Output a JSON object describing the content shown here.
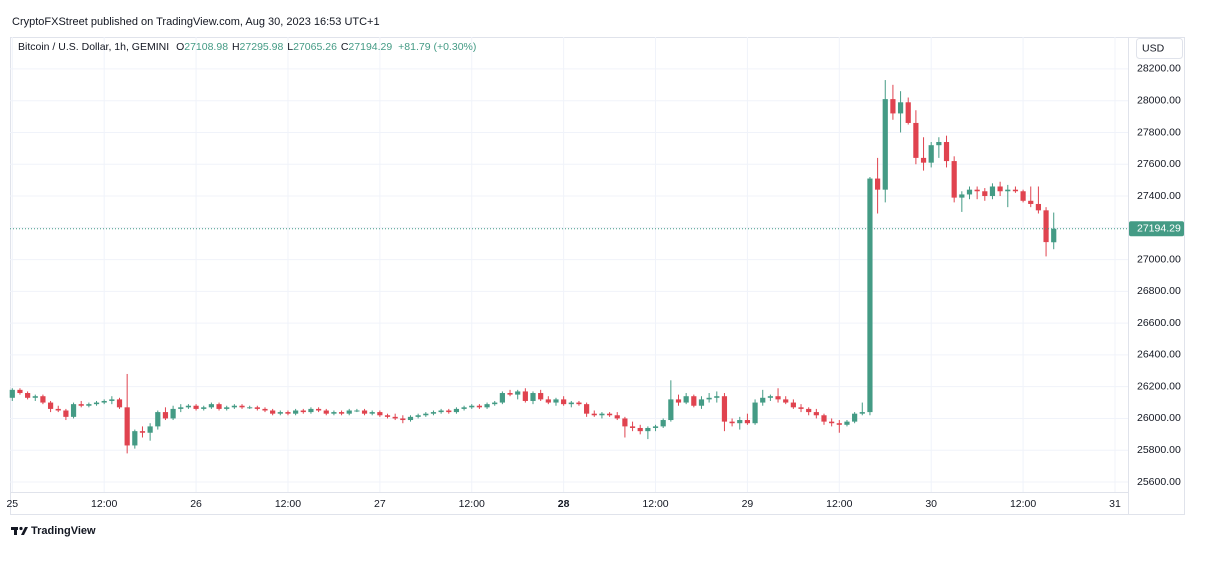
{
  "header": "CryptoFXStreet published on TradingView.com, Aug 30, 2023 16:53 UTC+1",
  "brand": "TradingView",
  "chart_data": {
    "type": "candlestick",
    "title": "Bitcoin / U.S. Dollar, 1h, GEMINI",
    "ohlc_labels": [
      "O",
      "H",
      "L",
      "C"
    ],
    "change": "+81.79 (+0.30%)",
    "currency": "USD",
    "up_color": "#449b85",
    "down_color": "#e0434f",
    "grid": true,
    "ylim": [
      25537,
      28401
    ],
    "yticks": [
      {
        "value": 25600,
        "label": "25600.00"
      },
      {
        "value": 25800,
        "label": "25800.00"
      },
      {
        "value": 26000,
        "label": "26000.00"
      },
      {
        "value": 26200,
        "label": "26200.00"
      },
      {
        "value": 26400,
        "label": "26400.00"
      },
      {
        "value": 26600,
        "label": "26600.00"
      },
      {
        "value": 26800,
        "label": "26800.00"
      },
      {
        "value": 27000,
        "label": "27000.00"
      },
      {
        "value": 27200,
        "label": "27200.00"
      },
      {
        "value": 27400,
        "label": "27400.00"
      },
      {
        "value": 27600,
        "label": "27600.00"
      },
      {
        "value": 27800,
        "label": "27800.00"
      },
      {
        "value": 28000,
        "label": "28000.00"
      },
      {
        "value": 28200,
        "label": "28200.00"
      }
    ],
    "xlim": [
      -0.3,
      145.7
    ],
    "xticks": [
      {
        "value": 0,
        "label": "25"
      },
      {
        "value": 12,
        "label": "12:00"
      },
      {
        "value": 24,
        "label": "26"
      },
      {
        "value": 36,
        "label": "12:00"
      },
      {
        "value": 48,
        "label": "27"
      },
      {
        "value": 60,
        "label": "12:00"
      },
      {
        "value": 72,
        "label": "28"
      },
      {
        "value": 84,
        "label": "12:00"
      },
      {
        "value": 96,
        "label": "29"
      },
      {
        "value": 108,
        "label": "12:00"
      },
      {
        "value": 120,
        "label": "30"
      },
      {
        "value": 132,
        "label": "12:00"
      },
      {
        "value": 144,
        "label": "31"
      }
    ],
    "candles": [
      [
        26130,
        26190,
        26110,
        26180
      ],
      [
        26180,
        26190,
        26150,
        26160
      ],
      [
        26160,
        26170,
        26120,
        26130
      ],
      [
        26130,
        26150,
        26110,
        26140
      ],
      [
        26140,
        26150,
        26090,
        26100
      ],
      [
        26100,
        26110,
        26040,
        26060
      ],
      [
        26060,
        26080,
        26040,
        26050
      ],
      [
        26050,
        26060,
        25990,
        26010
      ],
      [
        26010,
        26100,
        26000,
        26090
      ],
      [
        26090,
        26110,
        26070,
        26080
      ],
      [
        26080,
        26100,
        26070,
        26090
      ],
      [
        26090,
        26110,
        26080,
        26100
      ],
      [
        26100,
        26120,
        26090,
        26110
      ],
      [
        26110,
        26140,
        26090,
        26120
      ],
      [
        26120,
        26130,
        26060,
        26070
      ],
      [
        26070,
        26280,
        25780,
        25830
      ],
      [
        25830,
        25930,
        25810,
        25920
      ],
      [
        25920,
        25950,
        25880,
        25910
      ],
      [
        25910,
        25970,
        25860,
        25950
      ],
      [
        25950,
        26050,
        25930,
        26040
      ],
      [
        26040,
        26070,
        25990,
        26000
      ],
      [
        26000,
        26080,
        25990,
        26060
      ],
      [
        26060,
        26090,
        26040,
        26070
      ],
      [
        26070,
        26090,
        26060,
        26080
      ],
      [
        26080,
        26090,
        26050,
        26060
      ],
      [
        26060,
        26080,
        26050,
        26070
      ],
      [
        26070,
        26100,
        26060,
        26090
      ],
      [
        26090,
        26100,
        26050,
        26060
      ],
      [
        26060,
        26080,
        26050,
        26070
      ],
      [
        26070,
        26090,
        26060,
        26080
      ],
      [
        26080,
        26090,
        26060,
        26070
      ],
      [
        26070,
        26080,
        26060,
        26070
      ],
      [
        26070,
        26080,
        26050,
        26060
      ],
      [
        26060,
        26070,
        26040,
        26050
      ],
      [
        26050,
        26060,
        26020,
        26030
      ],
      [
        26030,
        26050,
        26020,
        26040
      ],
      [
        26040,
        26050,
        26020,
        26030
      ],
      [
        26030,
        26060,
        26020,
        26050
      ],
      [
        26050,
        26060,
        26030,
        26040
      ],
      [
        26040,
        26070,
        26030,
        26060
      ],
      [
        26060,
        26070,
        26040,
        26050
      ],
      [
        26050,
        26060,
        26020,
        26030
      ],
      [
        26030,
        26050,
        26020,
        26040
      ],
      [
        26040,
        26050,
        26020,
        26030
      ],
      [
        26030,
        26060,
        26020,
        26050
      ],
      [
        26050,
        26060,
        26040,
        26050
      ],
      [
        26050,
        26060,
        26020,
        26030
      ],
      [
        26030,
        26050,
        26020,
        26040
      ],
      [
        26040,
        26050,
        26010,
        26020
      ],
      [
        26020,
        26030,
        26000,
        26010
      ],
      [
        26010,
        26030,
        25990,
        26000
      ],
      [
        26000,
        26020,
        25970,
        25990
      ],
      [
        25990,
        26020,
        25980,
        26010
      ],
      [
        26010,
        26030,
        26000,
        26020
      ],
      [
        26020,
        26040,
        26010,
        26030
      ],
      [
        26030,
        26050,
        26020,
        26040
      ],
      [
        26040,
        26060,
        26030,
        26050
      ],
      [
        26050,
        26060,
        26030,
        26040
      ],
      [
        26040,
        26070,
        26030,
        26060
      ],
      [
        26060,
        26080,
        26050,
        26070
      ],
      [
        26070,
        26090,
        26060,
        26080
      ],
      [
        26080,
        26090,
        26060,
        26070
      ],
      [
        26070,
        26100,
        26060,
        26090
      ],
      [
        26090,
        26110,
        26080,
        26100
      ],
      [
        26100,
        26170,
        26090,
        26160
      ],
      [
        26160,
        26180,
        26140,
        26150
      ],
      [
        26150,
        26180,
        26120,
        26170
      ],
      [
        26170,
        26190,
        26100,
        26110
      ],
      [
        26110,
        26170,
        26090,
        26160
      ],
      [
        26160,
        26180,
        26110,
        26120
      ],
      [
        26120,
        26140,
        26090,
        26100
      ],
      [
        26100,
        26130,
        26080,
        26120
      ],
      [
        26120,
        26140,
        26080,
        26090
      ],
      [
        26090,
        26110,
        26070,
        26100
      ],
      [
        26100,
        26110,
        26080,
        26090
      ],
      [
        26090,
        26100,
        26010,
        26030
      ],
      [
        26030,
        26050,
        26010,
        26020
      ],
      [
        26020,
        26040,
        26000,
        26030
      ],
      [
        26030,
        26040,
        26010,
        26020
      ],
      [
        26020,
        26040,
        25990,
        26000
      ],
      [
        26000,
        26010,
        25880,
        25950
      ],
      [
        25950,
        25980,
        25920,
        25940
      ],
      [
        25940,
        25960,
        25900,
        25920
      ],
      [
        25920,
        25950,
        25870,
        25940
      ],
      [
        25940,
        25960,
        25920,
        25950
      ],
      [
        25950,
        26000,
        25940,
        25990
      ],
      [
        25990,
        26240,
        25980,
        26120
      ],
      [
        26120,
        26150,
        26080,
        26100
      ],
      [
        26100,
        26160,
        26090,
        26140
      ],
      [
        26140,
        26150,
        26070,
        26080
      ],
      [
        26080,
        26140,
        26060,
        26120
      ],
      [
        26120,
        26160,
        26100,
        26130
      ],
      [
        26130,
        26170,
        26100,
        26140
      ],
      [
        26140,
        26160,
        25920,
        25980
      ],
      [
        25980,
        26000,
        25950,
        25970
      ],
      [
        25970,
        26010,
        25930,
        25990
      ],
      [
        25990,
        26030,
        25960,
        25970
      ],
      [
        25970,
        26120,
        25960,
        26100
      ],
      [
        26100,
        26180,
        26080,
        26130
      ],
      [
        26130,
        26150,
        26110,
        26140
      ],
      [
        26140,
        26190,
        26100,
        26120
      ],
      [
        26120,
        26140,
        26090,
        26100
      ],
      [
        26100,
        26120,
        26060,
        26070
      ],
      [
        26070,
        26090,
        26040,
        26060
      ],
      [
        26060,
        26070,
        26020,
        26040
      ],
      [
        26040,
        26060,
        26000,
        26020
      ],
      [
        26020,
        26030,
        25960,
        25980
      ],
      [
        25980,
        26000,
        25950,
        25970
      ],
      [
        25970,
        25990,
        25910,
        25960
      ],
      [
        25960,
        25990,
        25950,
        25980
      ],
      [
        25980,
        26040,
        25970,
        26030
      ],
      [
        26030,
        26100,
        26020,
        26040
      ],
      [
        26040,
        27520,
        26020,
        27510
      ],
      [
        27510,
        27640,
        27290,
        27440
      ],
      [
        27440,
        28130,
        27360,
        28010
      ],
      [
        28010,
        28100,
        27880,
        27920
      ],
      [
        27920,
        28060,
        27800,
        27990
      ],
      [
        27990,
        28020,
        27850,
        27860
      ],
      [
        27860,
        27940,
        27600,
        27640
      ],
      [
        27640,
        27770,
        27560,
        27610
      ],
      [
        27610,
        27740,
        27580,
        27720
      ],
      [
        27720,
        27770,
        27640,
        27740
      ],
      [
        27740,
        27780,
        27580,
        27620
      ],
      [
        27620,
        27650,
        27360,
        27390
      ],
      [
        27390,
        27430,
        27300,
        27410
      ],
      [
        27410,
        27460,
        27380,
        27440
      ],
      [
        27440,
        27460,
        27380,
        27430
      ],
      [
        27430,
        27450,
        27370,
        27400
      ],
      [
        27400,
        27480,
        27380,
        27460
      ],
      [
        27460,
        27490,
        27400,
        27430
      ],
      [
        27430,
        27470,
        27330,
        27440
      ],
      [
        27440,
        27460,
        27420,
        27430
      ],
      [
        27430,
        27440,
        27360,
        27370
      ],
      [
        27370,
        27460,
        27330,
        27350
      ],
      [
        27350,
        27460,
        27290,
        27310
      ],
      [
        27310,
        27330,
        27020,
        27110
      ],
      [
        27108.98,
        27295.98,
        27065.26,
        27194.29
      ]
    ]
  }
}
